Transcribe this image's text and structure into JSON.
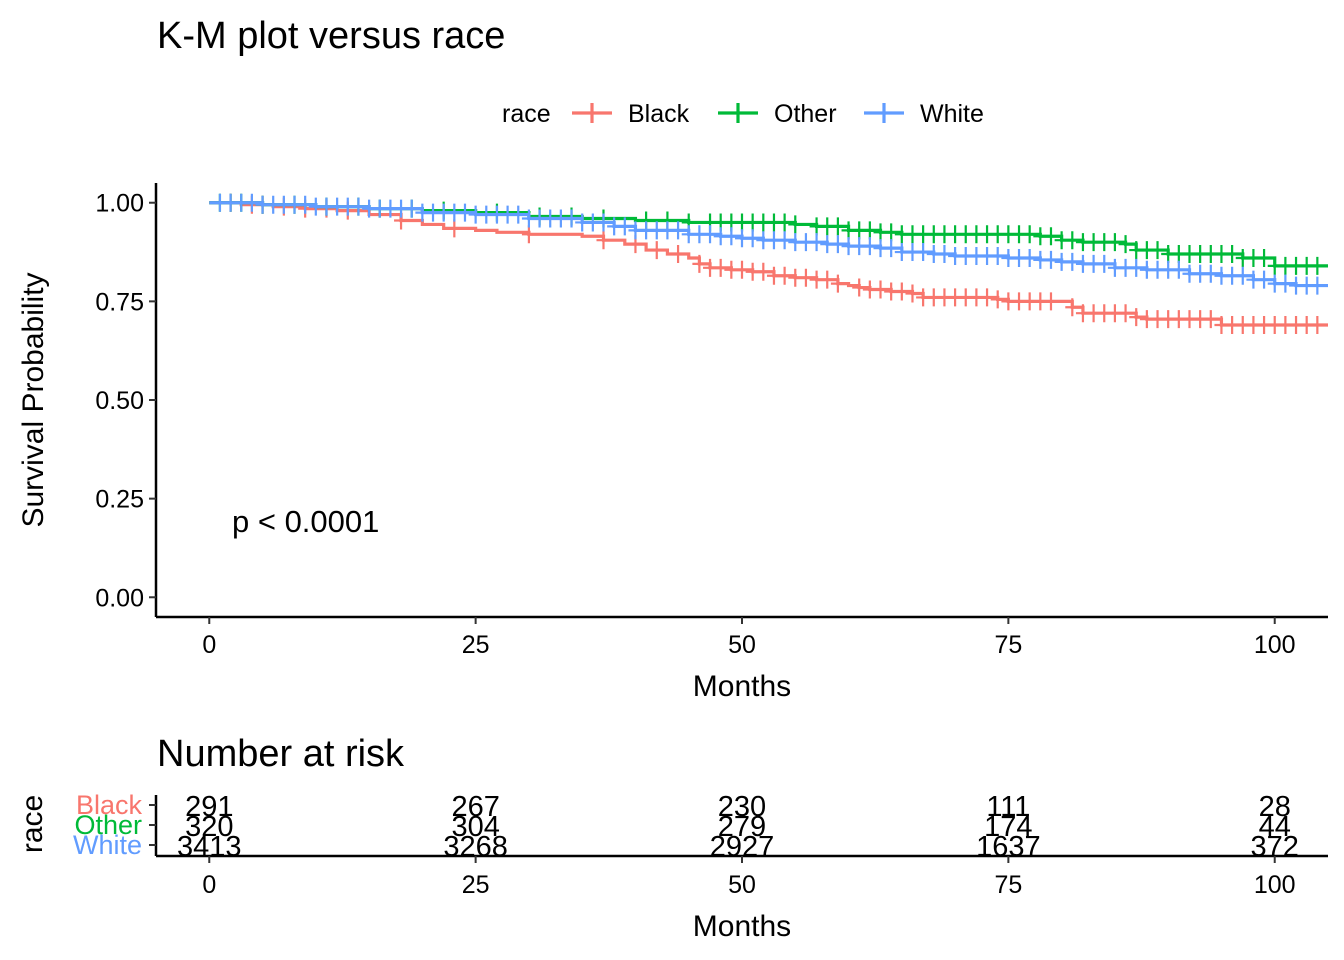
{
  "chart_data": [
    {
      "type": "line",
      "subtype": "kaplan-meier",
      "title": "K-M plot versus race",
      "xlabel": "Months",
      "ylabel": "Survival Probability",
      "xlim": [
        -5,
        105
      ],
      "ylim": [
        -0.05,
        1.05
      ],
      "x_ticks": [
        0,
        25,
        50,
        75,
        100
      ],
      "y_ticks": [
        0.0,
        0.25,
        0.5,
        0.75,
        1.0
      ],
      "y_tick_labels": [
        "0.00",
        "0.25",
        "0.50",
        "0.75",
        "1.00"
      ],
      "grid": false,
      "legend": {
        "title": "race",
        "position": "top",
        "entries": [
          "Black",
          "Other",
          "White"
        ]
      },
      "annotation": "p < 0.0001",
      "series": [
        {
          "name": "Black",
          "color": "#F8766D",
          "steps": [
            [
              0,
              1.0
            ],
            [
              3,
              0.995
            ],
            [
              6,
              0.99
            ],
            [
              9,
              0.985
            ],
            [
              12,
              0.98
            ],
            [
              15,
              0.97
            ],
            [
              18,
              0.955
            ],
            [
              20,
              0.945
            ],
            [
              22,
              0.935
            ],
            [
              25,
              0.93
            ],
            [
              27,
              0.925
            ],
            [
              30,
              0.92
            ],
            [
              33,
              0.92
            ],
            [
              35,
              0.915
            ],
            [
              37,
              0.905
            ],
            [
              39,
              0.895
            ],
            [
              41,
              0.88
            ],
            [
              43,
              0.87
            ],
            [
              45,
              0.86
            ],
            [
              46,
              0.845
            ],
            [
              47,
              0.835
            ],
            [
              49,
              0.83
            ],
            [
              51,
              0.825
            ],
            [
              53,
              0.815
            ],
            [
              55,
              0.81
            ],
            [
              57,
              0.805
            ],
            [
              59,
              0.795
            ],
            [
              60,
              0.79
            ],
            [
              61,
              0.785
            ],
            [
              62,
              0.78
            ],
            [
              64,
              0.775
            ],
            [
              66,
              0.77
            ],
            [
              67,
              0.76
            ],
            [
              69,
              0.76
            ],
            [
              72,
              0.76
            ],
            [
              74,
              0.755
            ],
            [
              75,
              0.75
            ],
            [
              77,
              0.75
            ],
            [
              79,
              0.75
            ],
            [
              81,
              0.735
            ],
            [
              82,
              0.72
            ],
            [
              85,
              0.72
            ],
            [
              87,
              0.71
            ],
            [
              88,
              0.705
            ],
            [
              90,
              0.705
            ],
            [
              95,
              0.69
            ],
            [
              96,
              0.69
            ],
            [
              105,
              0.69
            ]
          ],
          "censored_x": [
            2,
            4,
            5,
            7,
            9,
            11,
            13,
            18,
            23,
            30,
            37,
            40,
            42,
            44,
            46,
            47,
            48,
            49,
            50,
            51,
            52,
            53,
            54,
            55,
            56,
            57,
            58,
            59,
            61,
            62,
            63,
            64,
            65,
            66,
            67,
            68,
            69,
            70,
            71,
            72,
            73,
            74,
            75,
            76,
            77,
            78,
            79,
            81,
            82,
            83,
            84,
            85,
            86,
            87,
            88,
            89,
            90,
            91,
            92,
            93,
            94,
            95,
            96,
            97,
            98,
            99,
            100,
            101,
            102,
            103,
            104
          ]
        },
        {
          "name": "Other",
          "color": "#00BA38",
          "steps": [
            [
              0,
              1.0
            ],
            [
              5,
              0.995
            ],
            [
              10,
              0.99
            ],
            [
              15,
              0.985
            ],
            [
              20,
              0.98
            ],
            [
              25,
              0.975
            ],
            [
              30,
              0.965
            ],
            [
              35,
              0.96
            ],
            [
              40,
              0.955
            ],
            [
              45,
              0.95
            ],
            [
              55,
              0.945
            ],
            [
              57,
              0.94
            ],
            [
              60,
              0.93
            ],
            [
              63,
              0.925
            ],
            [
              65,
              0.92
            ],
            [
              75,
              0.92
            ],
            [
              78,
              0.915
            ],
            [
              80,
              0.905
            ],
            [
              82,
              0.9
            ],
            [
              86,
              0.895
            ],
            [
              87,
              0.88
            ],
            [
              90,
              0.87
            ],
            [
              97,
              0.86
            ],
            [
              100,
              0.84
            ],
            [
              105,
              0.84
            ]
          ],
          "censored_x": [
            1,
            2,
            3,
            5,
            8,
            11,
            14,
            16,
            19,
            22,
            27,
            31,
            34,
            37,
            41,
            43,
            45,
            47,
            48,
            49,
            50,
            51,
            52,
            53,
            54,
            55,
            57,
            58,
            59,
            60,
            61,
            62,
            63,
            64,
            65,
            66,
            67,
            68,
            69,
            70,
            71,
            72,
            73,
            74,
            75,
            76,
            77,
            78,
            79,
            80,
            81,
            82,
            83,
            84,
            85,
            86,
            87,
            88,
            89,
            90,
            91,
            92,
            93,
            94,
            95,
            96,
            97,
            98,
            99,
            100,
            101,
            102,
            103,
            104
          ]
        },
        {
          "name": "White",
          "color": "#619CFF",
          "steps": [
            [
              0,
              1.0
            ],
            [
              5,
              0.995
            ],
            [
              10,
              0.99
            ],
            [
              15,
              0.985
            ],
            [
              20,
              0.975
            ],
            [
              25,
              0.97
            ],
            [
              30,
              0.96
            ],
            [
              35,
              0.95
            ],
            [
              38,
              0.94
            ],
            [
              40,
              0.93
            ],
            [
              45,
              0.92
            ],
            [
              48,
              0.915
            ],
            [
              50,
              0.91
            ],
            [
              52,
              0.905
            ],
            [
              55,
              0.9
            ],
            [
              58,
              0.895
            ],
            [
              60,
              0.89
            ],
            [
              63,
              0.885
            ],
            [
              65,
              0.875
            ],
            [
              68,
              0.87
            ],
            [
              70,
              0.865
            ],
            [
              75,
              0.86
            ],
            [
              78,
              0.855
            ],
            [
              80,
              0.85
            ],
            [
              82,
              0.845
            ],
            [
              85,
              0.835
            ],
            [
              88,
              0.83
            ],
            [
              92,
              0.82
            ],
            [
              95,
              0.815
            ],
            [
              98,
              0.805
            ],
            [
              100,
              0.795
            ],
            [
              102,
              0.79
            ],
            [
              105,
              0.79
            ]
          ],
          "censored_x": [
            1,
            2,
            3,
            4,
            5,
            6,
            7,
            8,
            9,
            10,
            11,
            12,
            13,
            14,
            15,
            16,
            17,
            18,
            19,
            20,
            21,
            22,
            23,
            24,
            25,
            26,
            27,
            28,
            29,
            30,
            31,
            32,
            33,
            34,
            35,
            36,
            37,
            38,
            39,
            40,
            41,
            42,
            43,
            44,
            45,
            46,
            47,
            48,
            49,
            50,
            51,
            52,
            53,
            54,
            55,
            56,
            57,
            58,
            59,
            60,
            61,
            62,
            63,
            64,
            65,
            66,
            67,
            68,
            69,
            70,
            71,
            72,
            73,
            74,
            75,
            76,
            77,
            78,
            79,
            80,
            81,
            82,
            83,
            84,
            85,
            86,
            87,
            88,
            89,
            90,
            91,
            92,
            93,
            94,
            95,
            96,
            97,
            98,
            99,
            100,
            101,
            102,
            103,
            104
          ]
        }
      ]
    },
    {
      "type": "table",
      "title": "Number at risk",
      "xlabel": "Months",
      "ylabel": "race",
      "x_ticks": [
        0,
        25,
        50,
        75,
        100
      ],
      "rows": [
        {
          "name": "Black",
          "color": "#F8766D",
          "values": [
            291,
            267,
            230,
            111,
            28
          ]
        },
        {
          "name": "Other",
          "color": "#00BA38",
          "values": [
            320,
            304,
            279,
            174,
            44
          ]
        },
        {
          "name": "White",
          "color": "#619CFF",
          "values": [
            3413,
            3268,
            2927,
            1637,
            372
          ]
        }
      ]
    }
  ]
}
